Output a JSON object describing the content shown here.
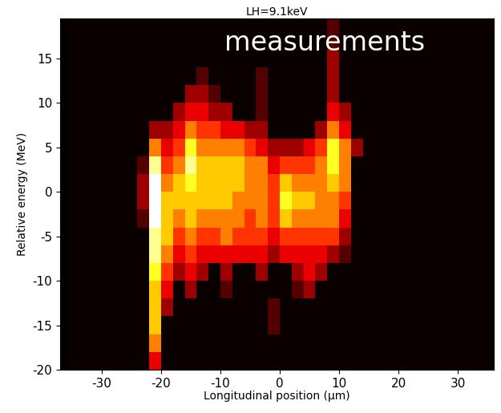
{
  "chart_data": {
    "type": "heatmap",
    "title": "LH=9.1keV",
    "annotation": "measurements",
    "x_label": "Longitudinal position (μm)",
    "y_label": "Relative energy (MeV)",
    "xlim": [
      -37,
      36
    ],
    "ylim": [
      -20,
      19.5
    ],
    "xticks": [
      -30,
      -20,
      -10,
      0,
      10,
      20,
      30
    ],
    "yticks": [
      -20,
      -15,
      -10,
      -5,
      0,
      5,
      10,
      15
    ],
    "color": "hot",
    "x_edges": [
      -36,
      -34,
      -32,
      -30,
      -28,
      -26,
      -24,
      -22,
      -20,
      -18,
      -16,
      -14,
      -12,
      -10,
      -8,
      -6,
      -4,
      -2,
      0,
      2,
      4,
      6,
      8,
      10,
      12,
      14,
      16,
      18,
      20,
      22,
      24,
      26,
      28,
      30,
      32,
      34,
      36
    ],
    "y_edges": [
      -20,
      -18,
      -16,
      -14,
      -12,
      -10,
      -8,
      -6,
      -4,
      -2,
      0,
      2,
      4,
      6,
      8,
      10,
      12,
      14,
      16,
      18,
      20
    ],
    "values": [
      [
        0,
        0,
        0,
        0,
        0,
        0,
        0,
        3,
        0,
        0,
        0,
        0,
        0,
        0,
        0,
        0,
        0,
        0,
        0,
        0,
        0,
        0,
        0,
        0,
        0,
        0,
        0,
        0,
        0,
        0,
        0,
        0,
        0,
        0,
        0,
        0
      ],
      [
        0,
        0,
        0,
        0,
        0,
        0,
        0,
        5,
        0,
        0,
        0,
        0,
        0,
        0,
        0,
        0,
        0,
        0,
        0,
        0,
        0,
        0,
        0,
        0,
        0,
        0,
        0,
        0,
        0,
        0,
        0,
        0,
        0,
        0,
        0,
        0
      ],
      [
        0,
        0,
        0,
        0,
        0,
        0,
        0,
        6,
        0,
        0,
        0,
        0,
        0,
        0,
        0,
        0,
        0,
        1,
        0,
        0,
        0,
        0,
        0,
        0,
        0,
        0,
        0,
        0,
        0,
        0,
        0,
        0,
        0,
        0,
        0,
        0
      ],
      [
        0,
        0,
        0,
        0,
        0,
        0,
        0,
        6,
        2,
        0,
        0,
        0,
        0,
        0,
        0,
        0,
        0,
        1,
        0,
        0,
        0,
        0,
        0,
        0,
        0,
        0,
        0,
        0,
        0,
        0,
        0,
        0,
        0,
        0,
        0,
        0
      ],
      [
        0,
        0,
        0,
        0,
        0,
        0,
        0,
        6,
        3,
        0,
        2,
        0,
        0,
        1,
        0,
        0,
        0,
        0,
        0,
        1,
        2,
        0,
        0,
        0,
        0,
        0,
        0,
        0,
        0,
        0,
        0,
        0,
        0,
        0,
        0,
        0
      ],
      [
        0,
        0,
        0,
        0,
        0,
        0,
        0,
        7,
        4,
        2,
        3,
        2,
        0,
        2,
        0,
        0,
        2,
        0,
        0,
        2,
        3,
        2,
        0,
        0,
        0,
        0,
        0,
        0,
        0,
        0,
        0,
        0,
        0,
        0,
        0,
        0
      ],
      [
        0,
        0,
        0,
        0,
        0,
        0,
        0,
        8,
        5,
        3,
        4,
        3,
        3,
        3,
        3,
        3,
        3,
        2,
        3,
        3,
        3,
        3,
        2,
        1,
        0,
        0,
        0,
        0,
        0,
        0,
        0,
        0,
        0,
        0,
        0,
        0
      ],
      [
        0,
        0,
        0,
        0,
        0,
        0,
        0,
        8,
        6,
        4,
        5,
        4,
        4,
        5,
        4,
        4,
        4,
        3,
        4,
        4,
        4,
        4,
        4,
        2,
        0,
        0,
        0,
        0,
        0,
        0,
        0,
        0,
        0,
        0,
        0,
        0
      ],
      [
        0,
        0,
        0,
        0,
        0,
        0,
        1,
        9,
        6,
        5,
        6,
        5,
        5,
        5,
        5,
        4,
        5,
        4,
        6,
        5,
        5,
        5,
        5,
        3,
        0,
        0,
        0,
        0,
        0,
        0,
        0,
        0,
        0,
        0,
        0,
        0
      ],
      [
        0,
        0,
        0,
        0,
        0,
        0,
        2,
        9,
        6,
        6,
        6,
        6,
        6,
        6,
        5,
        5,
        5,
        4,
        7,
        6,
        6,
        5,
        5,
        4,
        0,
        0,
        0,
        0,
        0,
        0,
        0,
        0,
        0,
        0,
        0,
        0
      ],
      [
        0,
        0,
        0,
        0,
        0,
        0,
        2,
        9,
        5,
        6,
        7,
        6,
        6,
        6,
        6,
        5,
        5,
        4,
        6,
        5,
        5,
        5,
        6,
        5,
        0,
        0,
        0,
        0,
        0,
        0,
        0,
        0,
        0,
        0,
        0,
        0
      ],
      [
        0,
        0,
        0,
        0,
        0,
        0,
        1,
        8,
        4,
        5,
        8,
        6,
        6,
        6,
        6,
        5,
        5,
        3,
        4,
        4,
        4,
        5,
        7,
        5,
        0,
        0,
        0,
        0,
        0,
        0,
        0,
        0,
        0,
        0,
        0,
        0
      ],
      [
        0,
        0,
        0,
        0,
        0,
        0,
        0,
        5,
        3,
        4,
        7,
        5,
        5,
        5,
        5,
        4,
        3,
        2,
        2,
        2,
        3,
        4,
        7,
        5,
        2,
        0,
        0,
        0,
        0,
        0,
        0,
        0,
        0,
        0,
        0,
        0
      ],
      [
        0,
        0,
        0,
        0,
        0,
        0,
        0,
        2,
        2,
        3,
        5,
        4,
        4,
        3,
        3,
        2,
        2,
        0,
        0,
        0,
        0,
        2,
        5,
        3,
        0,
        0,
        0,
        0,
        0,
        0,
        0,
        0,
        0,
        0,
        0,
        0
      ],
      [
        0,
        0,
        0,
        0,
        0,
        0,
        0,
        0,
        0,
        2,
        3,
        3,
        2,
        2,
        0,
        0,
        1,
        0,
        0,
        0,
        0,
        0,
        3,
        2,
        0,
        0,
        0,
        0,
        0,
        0,
        0,
        0,
        0,
        0,
        0,
        0
      ],
      [
        0,
        0,
        0,
        0,
        0,
        0,
        0,
        0,
        0,
        0,
        2,
        2,
        1,
        0,
        0,
        0,
        1,
        0,
        0,
        0,
        0,
        0,
        2,
        0,
        0,
        0,
        0,
        0,
        0,
        0,
        0,
        0,
        0,
        0,
        0,
        0
      ],
      [
        0,
        0,
        0,
        0,
        0,
        0,
        0,
        0,
        0,
        0,
        0,
        1,
        0,
        0,
        0,
        0,
        1,
        0,
        0,
        0,
        0,
        0,
        2,
        0,
        0,
        0,
        0,
        0,
        0,
        0,
        0,
        0,
        0,
        0,
        0,
        0
      ],
      [
        0,
        0,
        0,
        0,
        0,
        0,
        0,
        0,
        0,
        0,
        0,
        0,
        0,
        0,
        0,
        0,
        0,
        0,
        0,
        0,
        0,
        0,
        2,
        0,
        0,
        0,
        0,
        0,
        0,
        0,
        0,
        0,
        0,
        0,
        0,
        0
      ],
      [
        0,
        0,
        0,
        0,
        0,
        0,
        0,
        0,
        0,
        0,
        0,
        0,
        0,
        0,
        0,
        0,
        0,
        0,
        0,
        0,
        0,
        0,
        1,
        0,
        0,
        0,
        0,
        0,
        0,
        0,
        0,
        0,
        0,
        0,
        0,
        0
      ],
      [
        0,
        0,
        0,
        0,
        0,
        0,
        0,
        0,
        0,
        0,
        0,
        0,
        0,
        0,
        0,
        0,
        0,
        0,
        0,
        0,
        0,
        0,
        1,
        0,
        0,
        0,
        0,
        0,
        0,
        0,
        0,
        0,
        0,
        0,
        0,
        0
      ]
    ]
  }
}
